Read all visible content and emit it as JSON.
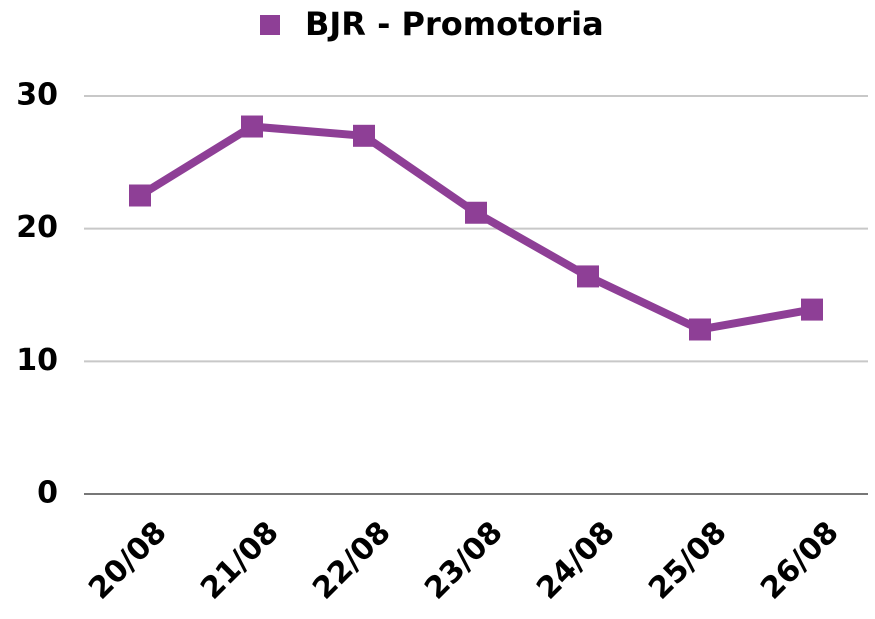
{
  "chart_data": {
    "type": "line",
    "categories": [
      "20/08",
      "21/08",
      "22/08",
      "23/08",
      "24/08",
      "25/08",
      "26/08"
    ],
    "series": [
      {
        "name": "BJR - Promotoria",
        "color": "#8e3f96",
        "values": [
          22.5,
          27.7,
          27,
          21.2,
          16.4,
          12.4,
          13.9
        ]
      }
    ],
    "ylim": [
      0,
      30
    ],
    "yticks": [
      0,
      10,
      20,
      30
    ],
    "grid": true,
    "legend": "top"
  }
}
